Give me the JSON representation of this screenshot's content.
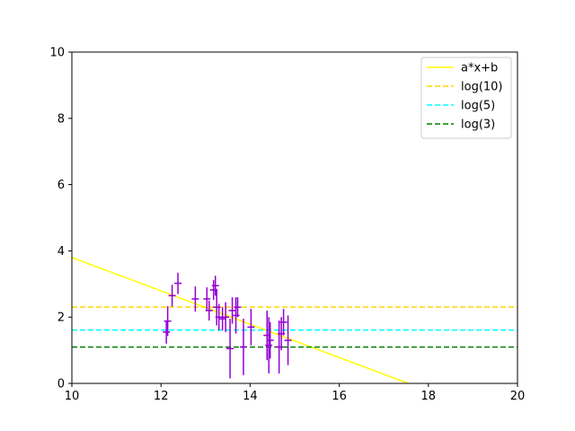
{
  "chart_data": {
    "type": "scatter",
    "xlim": [
      10,
      20
    ],
    "ylim": [
      0,
      10
    ],
    "x_ticks": [
      10,
      12,
      14,
      16,
      18,
      20
    ],
    "y_ticks": [
      0,
      2,
      4,
      6,
      8,
      10
    ],
    "grid": false,
    "legend_position": "top-right",
    "series": [
      {
        "name": "a*x+b",
        "kind": "line",
        "style": "solid",
        "color": "#ffff00",
        "x": [
          10,
          17.55
        ],
        "y": [
          3.8,
          0
        ]
      },
      {
        "name": "log(10)",
        "kind": "hline",
        "style": "dashed",
        "color": "#ffd700",
        "y": 2.303
      },
      {
        "name": "log(5)",
        "kind": "hline",
        "style": "dashed",
        "color": "#00ffff",
        "y": 1.609
      },
      {
        "name": "log(3)",
        "kind": "hline",
        "style": "dashed",
        "color": "#008000",
        "y": 1.099
      },
      {
        "kind": "errorbar",
        "color": "#9400d3",
        "points": [
          {
            "x": 12.12,
            "y": 1.55,
            "err": 0.35
          },
          {
            "x": 12.15,
            "y": 1.88,
            "err": 0.45
          },
          {
            "x": 12.25,
            "y": 2.65,
            "err": 0.33
          },
          {
            "x": 12.38,
            "y": 3.02,
            "err": 0.32
          },
          {
            "x": 12.77,
            "y": 2.55,
            "err": 0.38
          },
          {
            "x": 13.03,
            "y": 2.55,
            "err": 0.35
          },
          {
            "x": 13.08,
            "y": 2.2,
            "err": 0.3
          },
          {
            "x": 13.18,
            "y": 2.82,
            "err": 0.3
          },
          {
            "x": 13.22,
            "y": 2.95,
            "err": 0.3
          },
          {
            "x": 13.25,
            "y": 2.3,
            "err": 0.55
          },
          {
            "x": 13.3,
            "y": 2.0,
            "err": 0.4
          },
          {
            "x": 13.38,
            "y": 1.95,
            "err": 0.35
          },
          {
            "x": 13.45,
            "y": 2.0,
            "err": 0.45
          },
          {
            "x": 13.55,
            "y": 1.05,
            "err": 0.9
          },
          {
            "x": 13.6,
            "y": 2.2,
            "err": 0.4
          },
          {
            "x": 13.68,
            "y": 2.05,
            "err": 0.55
          },
          {
            "x": 13.72,
            "y": 2.3,
            "err": 0.3
          },
          {
            "x": 13.85,
            "y": 1.1,
            "err": 0.85
          },
          {
            "x": 14.02,
            "y": 1.7,
            "err": 0.55
          },
          {
            "x": 14.38,
            "y": 1.45,
            "err": 0.75
          },
          {
            "x": 14.42,
            "y": 1.15,
            "err": 0.85
          },
          {
            "x": 14.45,
            "y": 1.3,
            "err": 0.55
          },
          {
            "x": 14.65,
            "y": 1.1,
            "err": 0.8
          },
          {
            "x": 14.7,
            "y": 1.5,
            "err": 0.5
          },
          {
            "x": 14.75,
            "y": 1.85,
            "err": 0.4
          },
          {
            "x": 14.85,
            "y": 1.3,
            "err": 0.75
          }
        ]
      }
    ]
  }
}
